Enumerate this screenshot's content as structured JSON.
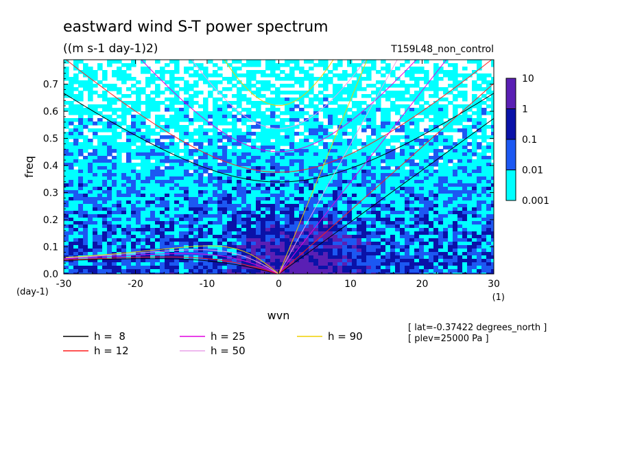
{
  "chart_data": {
    "type": "heatmap",
    "title": "eastward wind S-T power spectrum",
    "units": "((m s-1 day-1)2)",
    "run_label": "T159L48_non_control",
    "xlabel": "wvn",
    "ylabel": "freq",
    "x_unit": "(1)",
    "y_unit": "(day-1)",
    "xlim": [
      -30,
      30
    ],
    "ylim": [
      0,
      0.79
    ],
    "x_ticks": [
      -30,
      -20,
      -10,
      0,
      10,
      20,
      30
    ],
    "x_tick_labels": [
      "-30",
      "-20",
      "-10",
      "0",
      "10",
      "20",
      "30"
    ],
    "y_ticks": [
      0,
      0.1,
      0.2,
      0.3,
      0.4,
      0.5,
      0.6,
      0.7
    ],
    "y_tick_labels": [
      "0.0",
      "0.1",
      "0.2",
      "0.3",
      "0.4",
      "0.5",
      "0.6",
      "0.7"
    ],
    "colorbar": {
      "labels": [
        "10",
        "1",
        "0.1",
        "0.01",
        "0.001"
      ],
      "levels": [
        10,
        1,
        0.1,
        0.01,
        0.001
      ],
      "colors": [
        "#5a1fb4",
        "#0a12a8",
        "#1c58f2",
        "#00ffff"
      ]
    },
    "dispersion_curves": [
      {
        "label": "h =  8",
        "h": 8,
        "color": "#000000"
      },
      {
        "label": "h = 12",
        "h": 12,
        "color": "#ff1a1a"
      },
      {
        "label": "h = 25",
        "h": 25,
        "color": "#e000e0"
      },
      {
        "label": "h = 50",
        "h": 50,
        "color": "#e8a0e8"
      },
      {
        "label": "h = 90",
        "h": 90,
        "color": "#f0d000"
      }
    ],
    "annotations": [
      "[ lat=-0.37422 degrees_north ]",
      "[ plev=25000 Pa ]"
    ]
  }
}
